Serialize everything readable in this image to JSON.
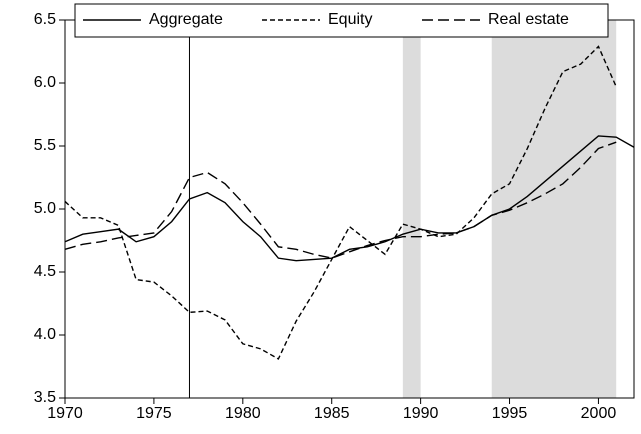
{
  "chart_data": {
    "type": "line",
    "x": [
      1970,
      1971,
      1972,
      1973,
      1974,
      1975,
      1976,
      1977,
      1978,
      1979,
      1980,
      1981,
      1982,
      1983,
      1984,
      1985,
      1986,
      1987,
      1988,
      1989,
      1990,
      1991,
      1992,
      1993,
      1994,
      1995,
      1996,
      1997,
      1998,
      1999,
      2000,
      2001,
      2002
    ],
    "series": [
      {
        "name": "Aggregate",
        "color": "#000000",
        "dash": "solid",
        "values": [
          4.74,
          4.8,
          4.82,
          4.84,
          4.74,
          4.78,
          4.9,
          5.08,
          5.13,
          5.05,
          4.9,
          4.78,
          4.61,
          4.59,
          4.6,
          4.61,
          4.68,
          4.7,
          4.74,
          4.8,
          4.84,
          4.81,
          4.81,
          4.86,
          4.95,
          5.0,
          5.1,
          5.22,
          5.34,
          5.46,
          5.58,
          5.57,
          5.49
        ]
      },
      {
        "name": "Equity",
        "color": "#000000",
        "dash": "short",
        "values": [
          5.06,
          4.93,
          4.93,
          4.87,
          4.44,
          4.42,
          4.31,
          4.18,
          4.19,
          4.12,
          3.93,
          3.89,
          3.81,
          4.11,
          4.34,
          4.6,
          4.86,
          4.75,
          4.64,
          4.88,
          4.84,
          4.78,
          4.8,
          4.93,
          5.12,
          5.2,
          5.48,
          5.8,
          6.09,
          6.15,
          6.29,
          5.97,
          null
        ]
      },
      {
        "name": "Real estate",
        "color": "#000000",
        "dash": "long",
        "values": [
          4.68,
          4.72,
          4.74,
          4.77,
          4.79,
          4.81,
          4.98,
          5.25,
          5.29,
          5.2,
          5.05,
          4.88,
          4.7,
          4.68,
          4.64,
          4.61,
          4.66,
          4.71,
          4.75,
          4.78,
          4.78,
          4.8,
          4.81,
          4.86,
          4.95,
          4.99,
          5.05,
          5.12,
          5.2,
          5.33,
          5.48,
          5.53,
          null
        ]
      }
    ],
    "xlim": [
      1970,
      2002
    ],
    "xticks": [
      1970,
      1975,
      1980,
      1985,
      1990,
      1995,
      2000
    ],
    "ylim": [
      3.5,
      6.5
    ],
    "yticks": [
      3.5,
      {
        "value": 4.0,
        "label": "4.0"
      },
      4.5,
      {
        "value": 5.0,
        "label": "5.0"
      },
      5.5,
      {
        "value": 6.0,
        "label": "6.0"
      },
      6.5
    ],
    "shaded": [
      [
        1989,
        1990
      ],
      [
        1994,
        2001
      ]
    ],
    "shade_color": "#dcdcdc",
    "vline": 1977,
    "grid": false,
    "legend_position": "top"
  }
}
